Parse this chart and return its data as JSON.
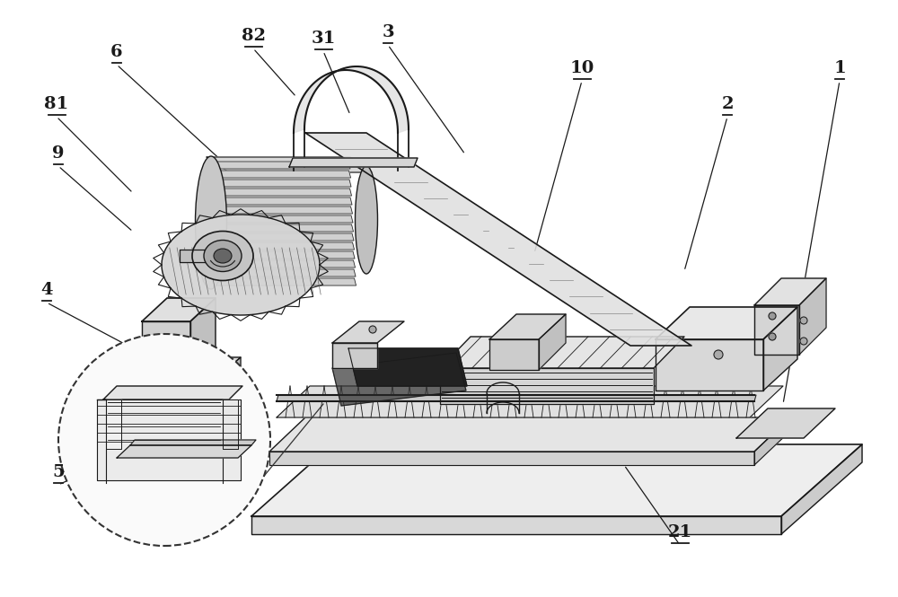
{
  "bg_color": "#ffffff",
  "line_color": "#1a1a1a",
  "fig_width": 10.0,
  "fig_height": 6.65,
  "labels_info": [
    [
      "1",
      935,
      88,
      872,
      450
    ],
    [
      "2",
      810,
      128,
      762,
      302
    ],
    [
      "3",
      432,
      48,
      518,
      172
    ],
    [
      "4",
      52,
      335,
      148,
      388
    ],
    [
      "5",
      65,
      538,
      175,
      490
    ],
    [
      "6",
      130,
      70,
      250,
      182
    ],
    [
      "9",
      65,
      183,
      148,
      258
    ],
    [
      "10",
      648,
      88,
      595,
      282
    ],
    [
      "21",
      757,
      605,
      695,
      518
    ],
    [
      "31",
      360,
      55,
      390,
      128
    ],
    [
      "81",
      63,
      128,
      148,
      215
    ],
    [
      "82",
      282,
      52,
      330,
      108
    ]
  ]
}
